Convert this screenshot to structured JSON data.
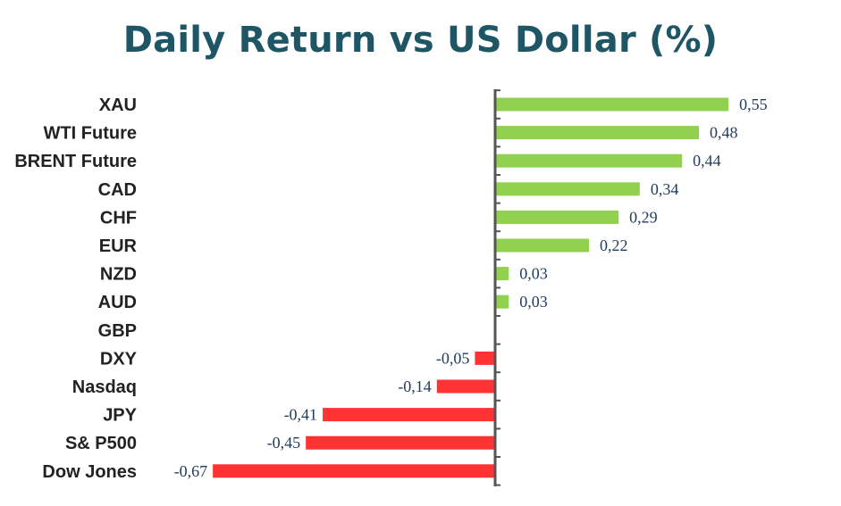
{
  "chart_data": {
    "type": "bar",
    "orientation": "horizontal",
    "title": "Daily Return vs US Dollar (%)",
    "categories": [
      "XAU",
      "WTI Future",
      "BRENT Future",
      "CAD",
      "CHF",
      "EUR",
      "NZD",
      "AUD",
      "GBP",
      "DXY",
      "Nasdaq",
      "JPY",
      "S& P500",
      "Dow Jones"
    ],
    "values": [
      0.55,
      0.48,
      0.44,
      0.34,
      0.29,
      0.22,
      0.03,
      0.03,
      0,
      -0.05,
      -0.14,
      -0.41,
      -0.45,
      -0.67
    ],
    "labels": [
      "0,55",
      "0,48",
      "0,44",
      "0,34",
      "0,29",
      "0,22",
      "0,03",
      "0,03",
      "",
      "-0,05",
      "-0,14",
      "-0,41",
      "-0,45",
      "-0,67"
    ],
    "positive_color": "#92d050",
    "negative_color": "#ff3333",
    "grid": false,
    "legend": "none"
  }
}
